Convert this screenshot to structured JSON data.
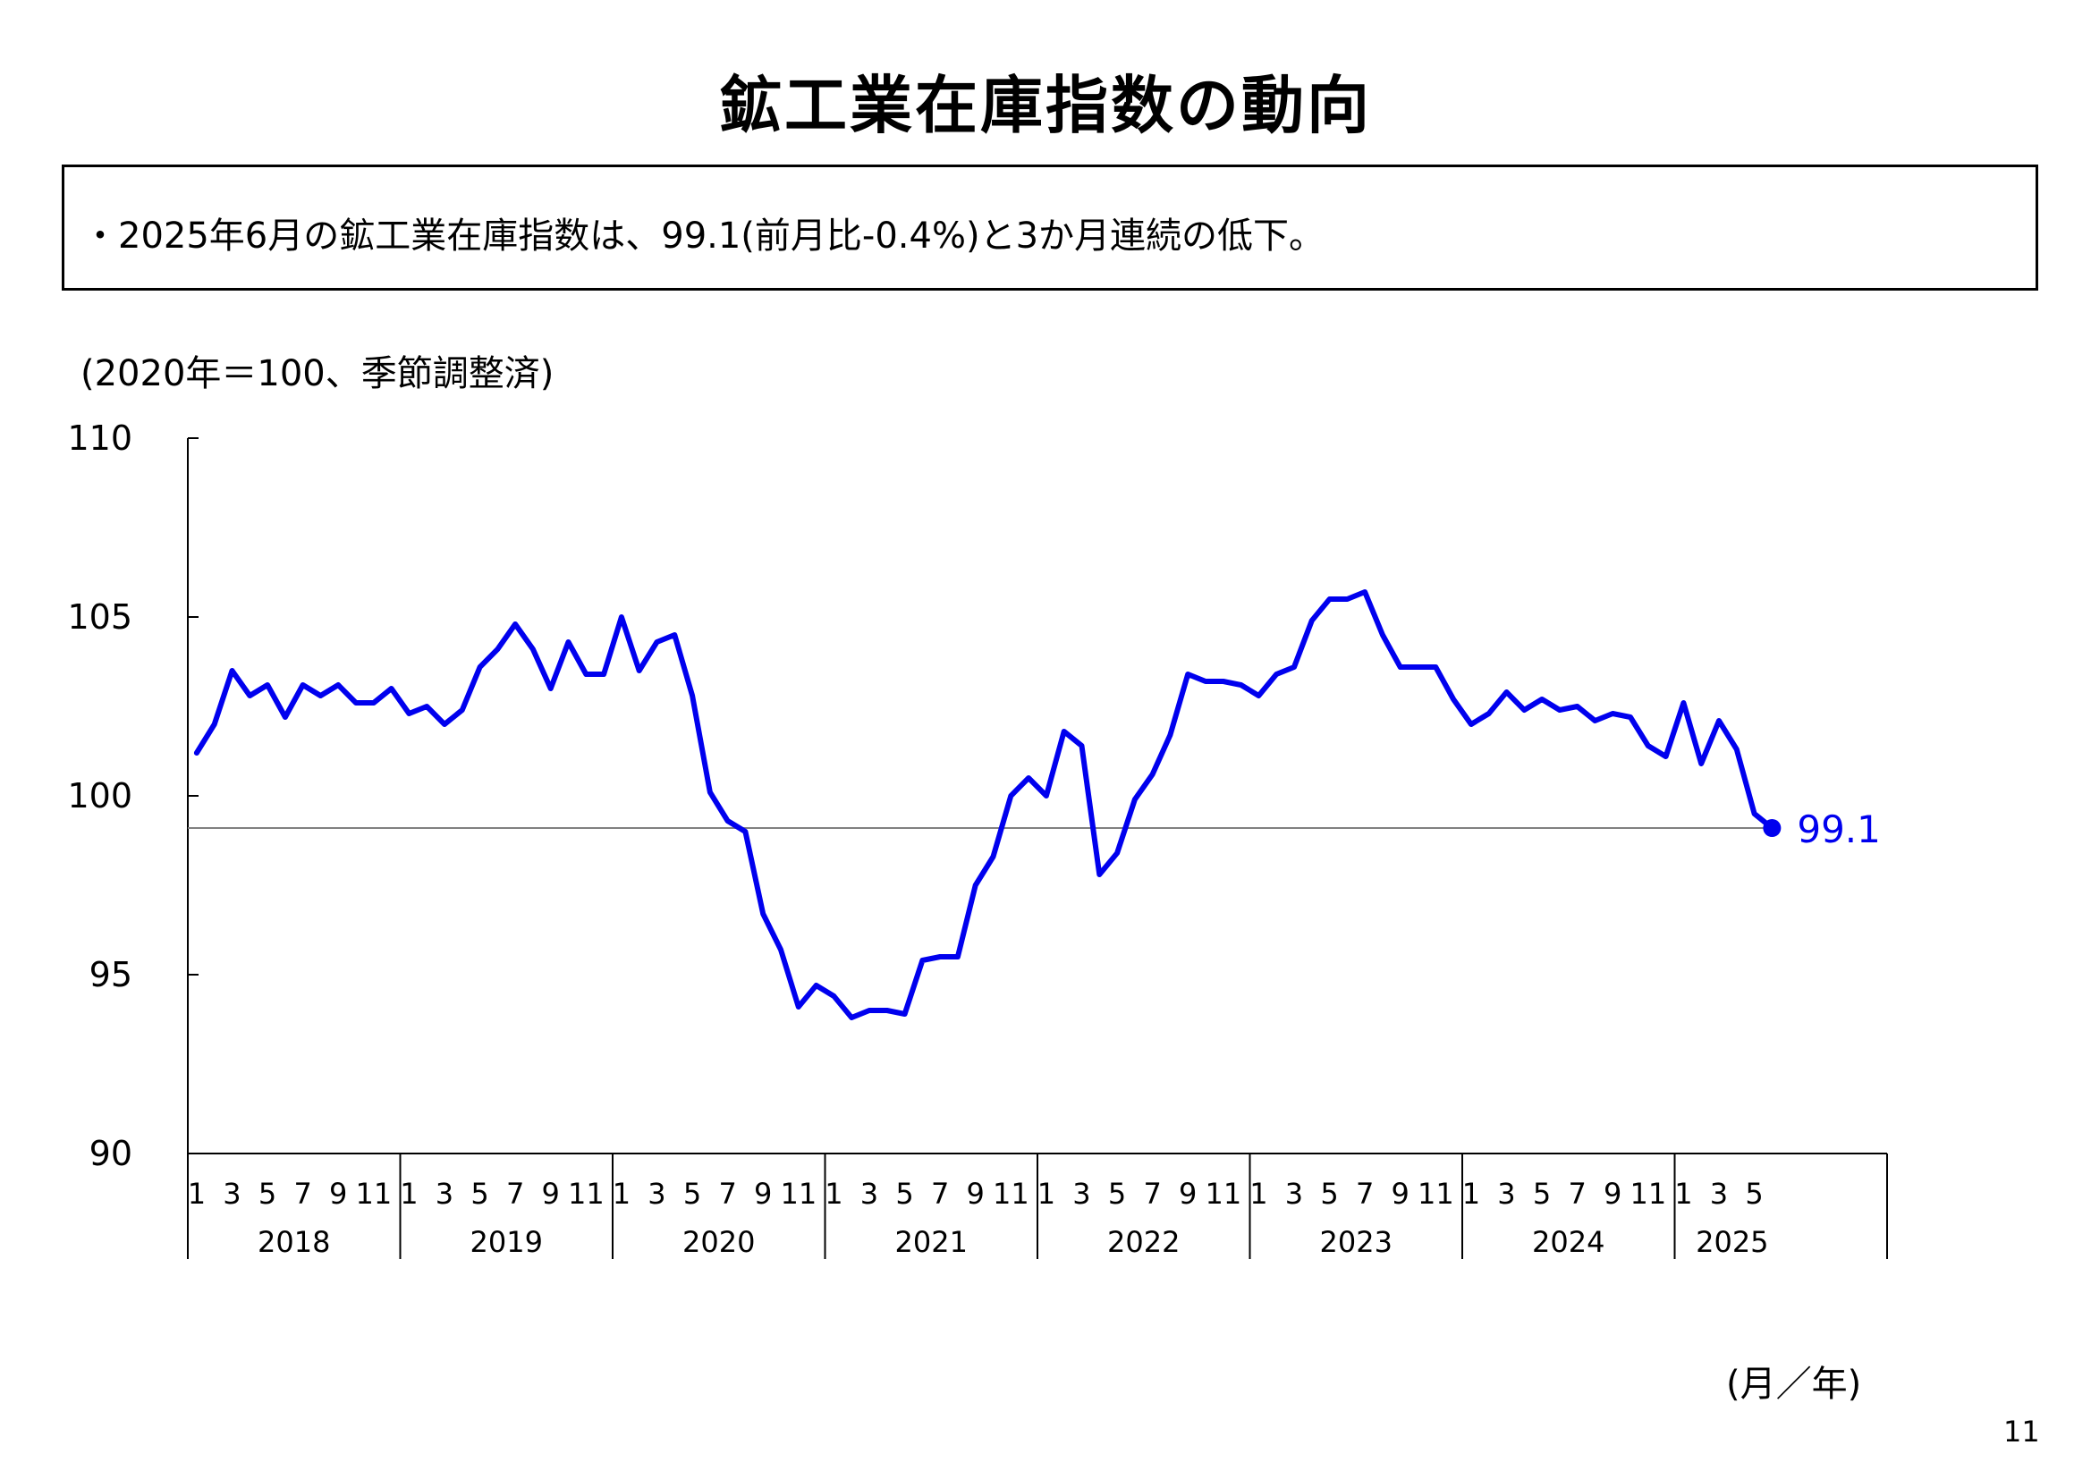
{
  "page": {
    "title": "鉱工業在庫指数の動向",
    "summary": "・2025年6月の鉱工業在庫指数は、99.1(前月比-0.4%)と3か月連続の低下。",
    "unit_note": "(2020年＝100、季節調整済)",
    "x_unit": "(月／年)",
    "page_number": "11"
  },
  "chart_data": {
    "type": "line",
    "title": "",
    "xlabel": "(月／年)",
    "ylabel": "(2020年＝100、季節調整済)",
    "ylim": [
      90,
      110
    ],
    "yticks": [
      90,
      95,
      100,
      105,
      110
    ],
    "grid": false,
    "line_color": "#0000ee",
    "reference_line": {
      "value": 99.1,
      "color": "#808080"
    },
    "years": [
      "2018",
      "2019",
      "2020",
      "2021",
      "2022",
      "2023",
      "2024",
      "2025"
    ],
    "month_ticks": [
      "1",
      "3",
      "5",
      "7",
      "9",
      "11"
    ],
    "last_point_label": "99.1",
    "series": [
      {
        "name": "",
        "x": [
          "2018-01",
          "2018-02",
          "2018-03",
          "2018-04",
          "2018-05",
          "2018-06",
          "2018-07",
          "2018-08",
          "2018-09",
          "2018-10",
          "2018-11",
          "2018-12",
          "2019-01",
          "2019-02",
          "2019-03",
          "2019-04",
          "2019-05",
          "2019-06",
          "2019-07",
          "2019-08",
          "2019-09",
          "2019-10",
          "2019-11",
          "2019-12",
          "2020-01",
          "2020-02",
          "2020-03",
          "2020-04",
          "2020-05",
          "2020-06",
          "2020-07",
          "2020-08",
          "2020-09",
          "2020-10",
          "2020-11",
          "2020-12",
          "2021-01",
          "2021-02",
          "2021-03",
          "2021-04",
          "2021-05",
          "2021-06",
          "2021-07",
          "2021-08",
          "2021-09",
          "2021-10",
          "2021-11",
          "2021-12",
          "2022-01",
          "2022-02",
          "2022-03",
          "2022-04",
          "2022-05",
          "2022-06",
          "2022-07",
          "2022-08",
          "2022-09",
          "2022-10",
          "2022-11",
          "2022-12",
          "2023-01",
          "2023-02",
          "2023-03",
          "2023-04",
          "2023-05",
          "2023-06",
          "2023-07",
          "2023-08",
          "2023-09",
          "2023-10",
          "2023-11",
          "2023-12",
          "2024-01",
          "2024-02",
          "2024-03",
          "2024-04",
          "2024-05",
          "2024-06",
          "2024-07",
          "2024-08",
          "2024-09",
          "2024-10",
          "2024-11",
          "2024-12",
          "2025-01",
          "2025-02",
          "2025-03",
          "2025-04",
          "2025-05",
          "2025-06"
        ],
        "values": [
          101.2,
          102.0,
          103.5,
          102.8,
          103.1,
          102.2,
          103.1,
          102.8,
          103.1,
          102.6,
          102.6,
          103.0,
          102.3,
          102.5,
          102.0,
          102.4,
          103.6,
          104.1,
          104.8,
          104.1,
          103.0,
          104.3,
          103.4,
          103.4,
          105.0,
          103.5,
          104.3,
          104.5,
          102.8,
          100.1,
          99.3,
          99.0,
          96.7,
          95.7,
          94.1,
          94.7,
          94.4,
          93.8,
          94.0,
          94.0,
          93.9,
          95.4,
          95.5,
          95.5,
          97.5,
          98.3,
          100.0,
          100.5,
          100.0,
          101.8,
          101.4,
          97.8,
          98.4,
          99.9,
          100.6,
          101.7,
          103.4,
          103.2,
          103.2,
          103.1,
          102.8,
          103.4,
          103.6,
          104.9,
          105.5,
          105.5,
          105.7,
          104.5,
          103.6,
          103.6,
          103.6,
          102.7,
          102.0,
          102.3,
          102.9,
          102.4,
          102.7,
          102.4,
          102.5,
          102.1,
          102.3,
          102.2,
          101.4,
          101.1,
          102.6,
          100.9,
          102.1,
          101.3,
          99.5,
          99.1
        ]
      }
    ]
  }
}
